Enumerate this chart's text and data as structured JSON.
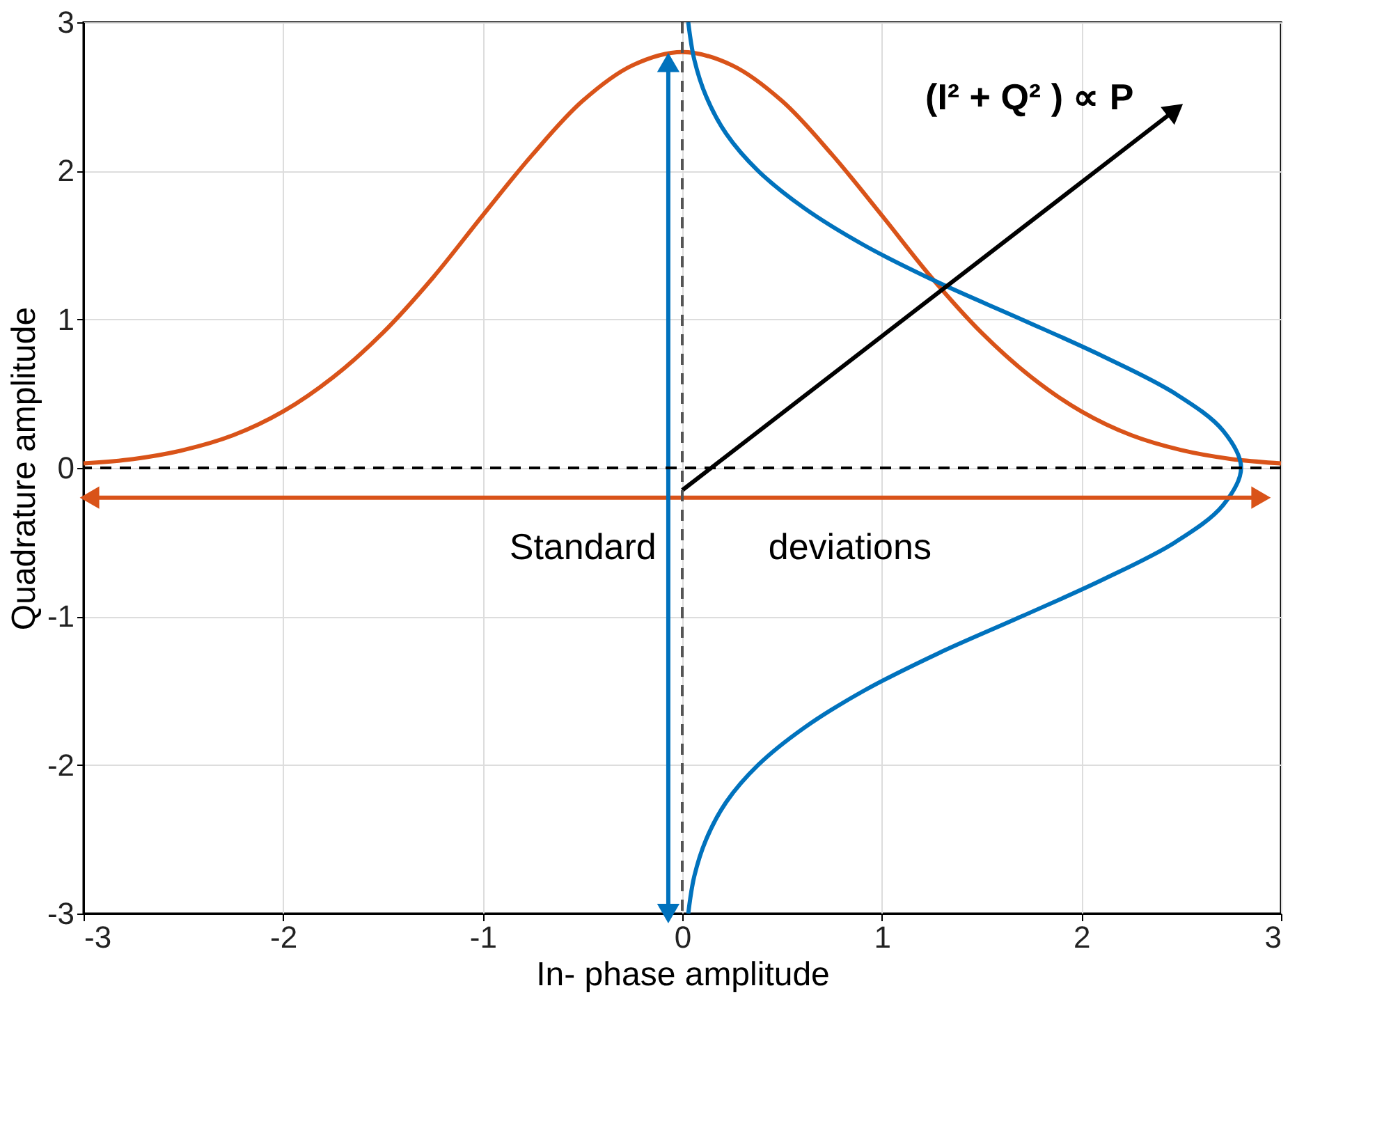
{
  "chart_data": {
    "type": "line",
    "xlabel": "In- phase amplitude",
    "ylabel": "Quadrature amplitude",
    "xlim": [
      -3,
      3
    ],
    "ylim": [
      -3,
      3
    ],
    "xticks": [
      -3,
      -2,
      -1,
      0,
      1,
      2,
      3
    ],
    "yticks": [
      -3,
      -2,
      -1,
      0,
      1,
      2,
      3
    ],
    "grid": true,
    "line_style": "solid",
    "marker": "none",
    "x": [
      -3,
      -2.75,
      -2.5,
      -2.25,
      -2,
      -1.75,
      -1.5,
      -1.25,
      -1,
      -0.75,
      -0.5,
      -0.25,
      0,
      0.25,
      0.5,
      0.75,
      1,
      1.25,
      1.5,
      1.75,
      2,
      2.25,
      2.5,
      2.75,
      3
    ],
    "series": [
      {
        "color": "#d95319",
        "values": [
          0.03,
          0.06,
          0.12,
          0.22,
          0.38,
          0.61,
          0.91,
          1.28,
          1.7,
          2.11,
          2.47,
          2.71,
          2.8,
          2.71,
          2.47,
          2.11,
          1.7,
          1.28,
          0.91,
          0.61,
          0.38,
          0.22,
          0.12,
          0.06,
          0.03
        ]
      },
      {
        "color": "#0072bd",
        "x": [
          0.03,
          0.06,
          0.12,
          0.22,
          0.38,
          0.61,
          0.91,
          1.28,
          1.7,
          2.11,
          2.47,
          2.71,
          2.8,
          2.71,
          2.47,
          2.11,
          1.7,
          1.28,
          0.91,
          0.61,
          0.38,
          0.22,
          0.12,
          0.06,
          0.03
        ],
        "values": [
          -3,
          -2.75,
          -2.5,
          -2.25,
          -2,
          -1.75,
          -1.5,
          -1.25,
          -1,
          -0.75,
          -0.5,
          -0.25,
          0,
          0.25,
          0.5,
          0.75,
          1,
          1.25,
          1.5,
          1.75,
          2,
          2.25,
          2.5,
          2.75,
          3
        ]
      },
      {
        "color": "#d95319",
        "x": [
          -2.97,
          2.9
        ],
        "values": [
          -0.2,
          -0.2
        ],
        "marker": [
          "triangle",
          "triangle"
        ]
      },
      {
        "color": "#0072bd",
        "x": [
          -0.07,
          -0.07
        ],
        "values": [
          -3,
          2.73
        ],
        "marker": [
          "triangle",
          "triangle"
        ]
      },
      {
        "color": "#000000",
        "x": [
          0,
          2.47
        ],
        "values": [
          -0.15,
          2.41
        ],
        "marker": [
          "none",
          "triangle"
        ]
      }
    ],
    "ref_lines": [
      {
        "axis": "x",
        "value": 0,
        "color": "#555555",
        "line_style": "dashed"
      },
      {
        "axis": "y",
        "value": 0,
        "color": "#000000",
        "line_style": "dashed"
      }
    ],
    "annotations": [
      "Standard",
      "deviations",
      "(I² + Q² ) ∝ P"
    ]
  }
}
